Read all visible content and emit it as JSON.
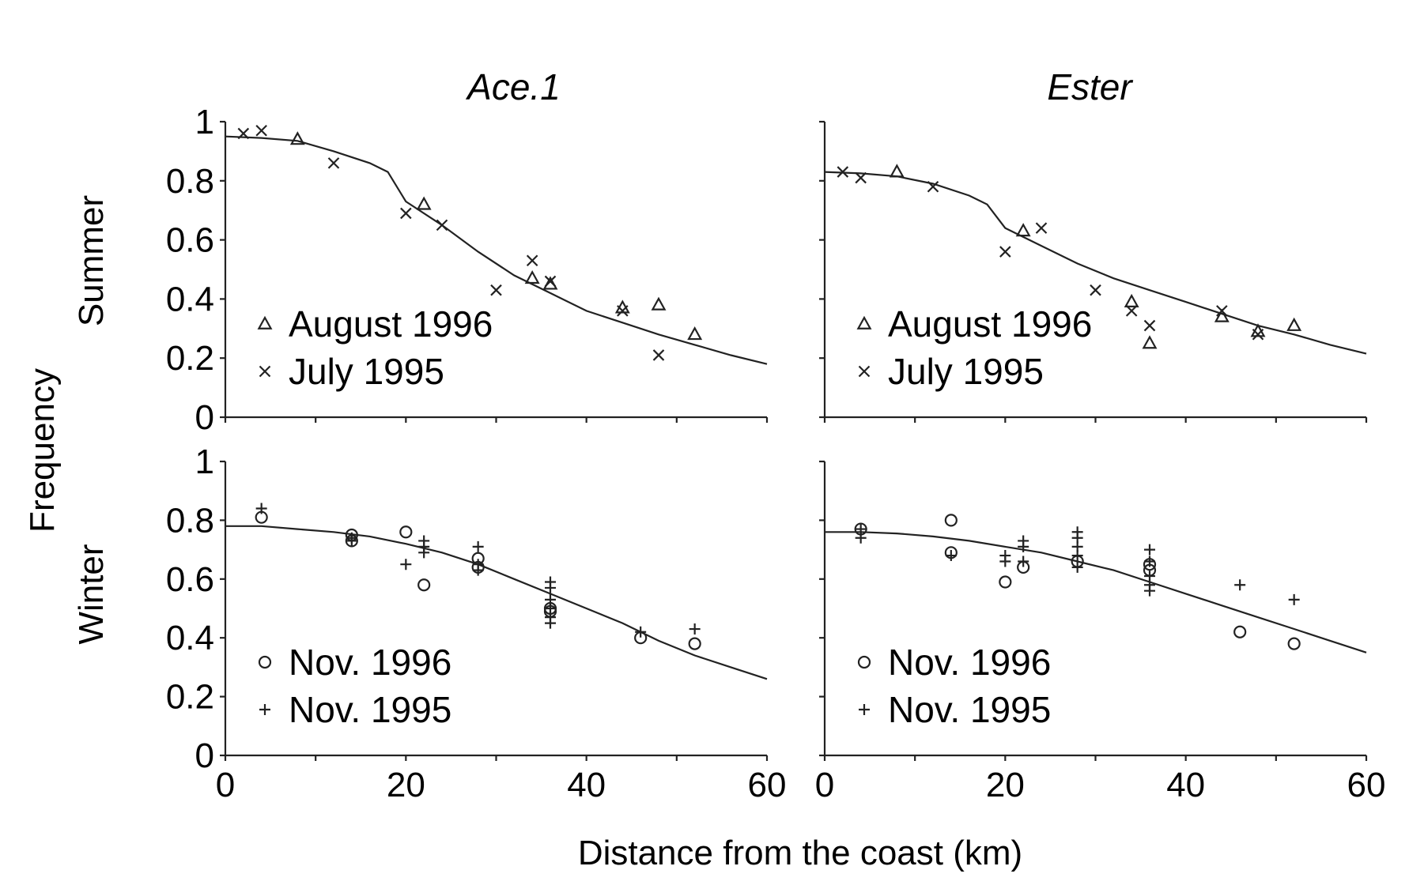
{
  "figure": {
    "xlabel": "Distance from the coast (km)",
    "ylabel": "Frequency",
    "row_labels": [
      "Summer",
      "Winter"
    ],
    "column_titles": [
      "Ace.1",
      "Ester"
    ]
  },
  "chart_data": [
    {
      "type": "scatter",
      "title": "Ace.1",
      "row": "Summer",
      "xlabel": "Distance from the coast (km)",
      "ylabel": "Frequency",
      "xlim": [
        0,
        60
      ],
      "ylim": [
        0,
        1
      ],
      "xticks": [
        "0",
        "20",
        "40",
        "60"
      ],
      "yticks": [
        "0",
        "0.2",
        "0.4",
        "0.6",
        "0.8",
        "1"
      ],
      "show_xtick_labels": false,
      "legend_position": "bottom-left",
      "series": [
        {
          "name": "August 1996",
          "marker": "triangle",
          "x": [
            8,
            22,
            34,
            36,
            44,
            48,
            52
          ],
          "y": [
            0.94,
            0.72,
            0.47,
            0.45,
            0.37,
            0.38,
            0.28
          ]
        },
        {
          "name": "July  1995",
          "marker": "x",
          "x": [
            2,
            4,
            12,
            20,
            24,
            30,
            34,
            36,
            44,
            48
          ],
          "y": [
            0.96,
            0.97,
            0.86,
            0.69,
            0.65,
            0.43,
            0.53,
            0.46,
            0.36,
            0.21
          ]
        },
        {
          "name": "",
          "marker": "line",
          "x": [
            0,
            4,
            8,
            12,
            16,
            18,
            20,
            24,
            28,
            32,
            36,
            40,
            44,
            48,
            52,
            56,
            60
          ],
          "y": [
            0.95,
            0.945,
            0.935,
            0.9,
            0.86,
            0.83,
            0.73,
            0.65,
            0.56,
            0.48,
            0.42,
            0.36,
            0.32,
            0.28,
            0.245,
            0.21,
            0.18
          ]
        }
      ]
    },
    {
      "type": "scatter",
      "title": "Ester",
      "row": "Summer",
      "xlabel": "Distance from the coast (km)",
      "ylabel": "Frequency",
      "xlim": [
        0,
        60
      ],
      "ylim": [
        0,
        1
      ],
      "xticks": [
        "0",
        "20",
        "40",
        "60"
      ],
      "yticks": [
        "0",
        "0.2",
        "0.4",
        "0.6",
        "0.8",
        "1"
      ],
      "show_xtick_labels": false,
      "legend_position": "bottom-left",
      "series": [
        {
          "name": "August 1996",
          "marker": "triangle",
          "x": [
            8,
            22,
            34,
            36,
            44,
            48,
            52
          ],
          "y": [
            0.83,
            0.63,
            0.39,
            0.25,
            0.34,
            0.29,
            0.31
          ]
        },
        {
          "name": "July  1995",
          "marker": "x",
          "x": [
            2,
            4,
            12,
            20,
            24,
            30,
            34,
            36,
            44,
            48
          ],
          "y": [
            0.83,
            0.81,
            0.78,
            0.56,
            0.64,
            0.43,
            0.36,
            0.31,
            0.36,
            0.28
          ]
        },
        {
          "name": "",
          "marker": "line",
          "x": [
            0,
            4,
            8,
            12,
            16,
            18,
            20,
            24,
            28,
            32,
            36,
            40,
            44,
            48,
            52,
            56,
            60
          ],
          "y": [
            0.83,
            0.825,
            0.815,
            0.79,
            0.75,
            0.72,
            0.64,
            0.58,
            0.52,
            0.47,
            0.43,
            0.39,
            0.35,
            0.31,
            0.28,
            0.245,
            0.215
          ]
        }
      ]
    },
    {
      "type": "scatter",
      "title": "Ace.1",
      "row": "Winter",
      "xlabel": "Distance from the coast (km)",
      "ylabel": "Frequency",
      "xlim": [
        0,
        60
      ],
      "ylim": [
        0,
        1
      ],
      "xticks": [
        "0",
        "20",
        "40",
        "60"
      ],
      "yticks": [
        "0",
        "0.2",
        "0.4",
        "0.6",
        "0.8",
        "1"
      ],
      "show_xtick_labels": true,
      "legend_position": "bottom-left",
      "series": [
        {
          "name": "Nov. 1996",
          "marker": "circle",
          "x": [
            4,
            14,
            14,
            20,
            22,
            28,
            28,
            36,
            36,
            46,
            52
          ],
          "y": [
            0.81,
            0.75,
            0.73,
            0.76,
            0.58,
            0.67,
            0.64,
            0.5,
            0.49,
            0.4,
            0.38
          ]
        },
        {
          "name": "Nov. 1995",
          "marker": "plus",
          "x": [
            4,
            14,
            14,
            20,
            22,
            22,
            22,
            28,
            28,
            28,
            36,
            36,
            36,
            36,
            36,
            36,
            46,
            52
          ],
          "y": [
            0.84,
            0.74,
            0.73,
            0.65,
            0.73,
            0.71,
            0.69,
            0.71,
            0.65,
            0.63,
            0.59,
            0.57,
            0.53,
            0.5,
            0.47,
            0.45,
            0.42,
            0.43
          ]
        },
        {
          "name": "",
          "marker": "line",
          "x": [
            0,
            4,
            8,
            12,
            16,
            20,
            24,
            28,
            32,
            36,
            40,
            44,
            48,
            52,
            56,
            60
          ],
          "y": [
            0.78,
            0.78,
            0.77,
            0.76,
            0.745,
            0.72,
            0.69,
            0.65,
            0.6,
            0.55,
            0.5,
            0.45,
            0.39,
            0.34,
            0.3,
            0.26
          ]
        }
      ]
    },
    {
      "type": "scatter",
      "title": "Ester",
      "row": "Winter",
      "xlabel": "Distance from the coast (km)",
      "ylabel": "Frequency",
      "xlim": [
        0,
        60
      ],
      "ylim": [
        0,
        1
      ],
      "xticks": [
        "0",
        "20",
        "40",
        "60"
      ],
      "yticks": [
        "0",
        "0.2",
        "0.4",
        "0.6",
        "0.8",
        "1"
      ],
      "show_xtick_labels": true,
      "legend_position": "bottom-left",
      "series": [
        {
          "name": "Nov. 1996",
          "marker": "circle",
          "x": [
            4,
            14,
            14,
            20,
            22,
            28,
            36,
            36,
            46,
            52
          ],
          "y": [
            0.77,
            0.8,
            0.69,
            0.59,
            0.64,
            0.66,
            0.65,
            0.63,
            0.42,
            0.38
          ]
        },
        {
          "name": "Nov. 1995",
          "marker": "plus",
          "x": [
            4,
            4,
            14,
            20,
            20,
            22,
            22,
            22,
            28,
            28,
            28,
            28,
            28,
            36,
            36,
            36,
            36,
            36,
            46,
            52
          ],
          "y": [
            0.77,
            0.74,
            0.68,
            0.68,
            0.66,
            0.73,
            0.71,
            0.66,
            0.76,
            0.74,
            0.71,
            0.68,
            0.64,
            0.7,
            0.66,
            0.61,
            0.58,
            0.56,
            0.58,
            0.53
          ]
        },
        {
          "name": "",
          "marker": "line",
          "x": [
            0,
            4,
            8,
            12,
            16,
            20,
            24,
            28,
            32,
            36,
            40,
            44,
            48,
            52,
            56,
            60
          ],
          "y": [
            0.76,
            0.76,
            0.755,
            0.745,
            0.73,
            0.71,
            0.69,
            0.66,
            0.63,
            0.59,
            0.55,
            0.51,
            0.47,
            0.43,
            0.39,
            0.35
          ]
        }
      ]
    }
  ]
}
